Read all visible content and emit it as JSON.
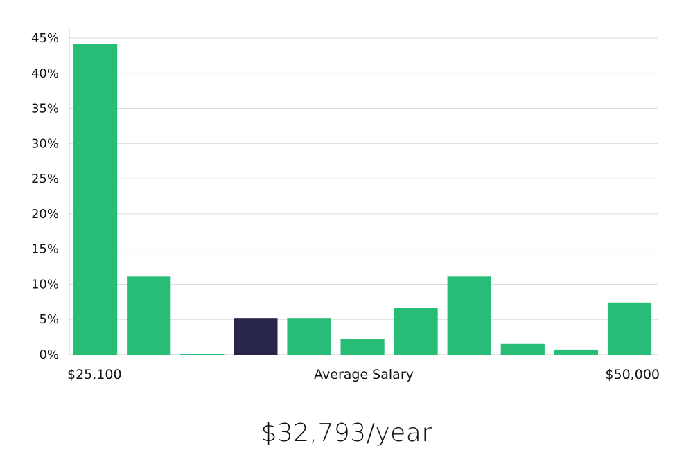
{
  "chart_data": {
    "type": "bar",
    "y_tick_labels": [
      "0%",
      "5%",
      "10%",
      "15%",
      "20%",
      "25%",
      "30%",
      "35%",
      "40%",
      "45%"
    ],
    "ylim": [
      0,
      46
    ],
    "grid": true,
    "values": [
      44.2,
      11.1,
      0.1,
      5.2,
      5.2,
      2.2,
      6.6,
      11.1,
      1.5,
      0.7,
      7.4
    ],
    "highlight_index": 3,
    "x_start_label": "$25,100",
    "x_end_label": "$50,000",
    "xlabel": "Average Salary",
    "colors": {
      "bar": "#27bd77",
      "highlight": "#28254a",
      "grid": "#dcdcdc",
      "axis": "#cccccc"
    }
  },
  "salary_text": "$32,793/year"
}
